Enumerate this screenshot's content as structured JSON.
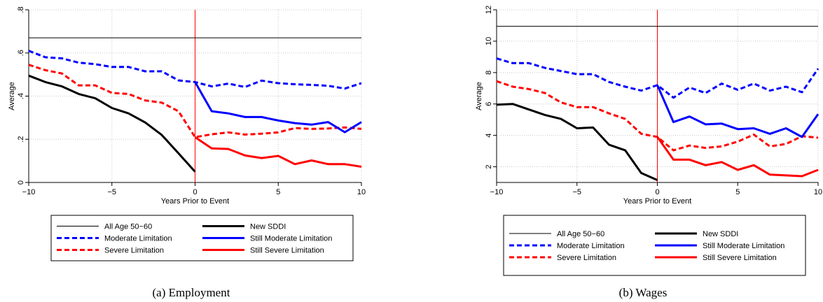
{
  "chart_data": [
    {
      "type": "line",
      "caption": "(a)  Employment",
      "xlabel": "Years Prior to Event",
      "ylabel": "Average",
      "xlim": [
        -10,
        10
      ],
      "ylim": [
        0,
        0.8
      ],
      "xticks": [
        -10,
        -5,
        0,
        5,
        10
      ],
      "xtick_labels": [
        "−10",
        "−5",
        "0",
        "5",
        "10"
      ],
      "yticks": [
        0,
        0.2,
        0.4,
        0.6,
        0.8
      ],
      "ytick_labels": [
        "0",
        ".2",
        ".4",
        ".6",
        ".8"
      ],
      "grid": true,
      "event_line_x": 0,
      "series": [
        {
          "name": "All Age 50−60",
          "color": "#000000",
          "style": "thin",
          "x": [
            -10,
            10
          ],
          "y": [
            0.67,
            0.67
          ]
        },
        {
          "name": "Moderate Limitation",
          "color": "#0000ff",
          "style": "dashed",
          "x": [
            -10,
            -9,
            -8,
            -7,
            -6,
            -5,
            -4,
            -3,
            -2,
            -1,
            0,
            1,
            2,
            3,
            4,
            5,
            6,
            7,
            8,
            9,
            10
          ],
          "y": [
            0.61,
            0.58,
            0.575,
            0.555,
            0.548,
            0.535,
            0.535,
            0.515,
            0.515,
            0.473,
            0.465,
            0.445,
            0.458,
            0.442,
            0.472,
            0.46,
            0.455,
            0.452,
            0.448,
            0.435,
            0.46
          ]
        },
        {
          "name": "Severe Limitation",
          "color": "#ff0000",
          "style": "dashed",
          "x": [
            -10,
            -9,
            -8,
            -7,
            -6,
            -5,
            -4,
            -3,
            -2,
            -1,
            0,
            1,
            2,
            3,
            4,
            5,
            6,
            7,
            8,
            9,
            10
          ],
          "y": [
            0.545,
            0.52,
            0.505,
            0.45,
            0.45,
            0.415,
            0.41,
            0.38,
            0.37,
            0.33,
            0.21,
            0.223,
            0.232,
            0.222,
            0.226,
            0.232,
            0.252,
            0.248,
            0.25,
            0.255,
            0.248
          ]
        },
        {
          "name": "New SDDI",
          "color": "#000000",
          "style": "thick",
          "x": [
            -10,
            -9,
            -8,
            -7,
            -6,
            -5,
            -4,
            -3,
            -2,
            -1,
            0
          ],
          "y": [
            0.495,
            0.465,
            0.445,
            0.41,
            0.39,
            0.345,
            0.32,
            0.278,
            0.22,
            0.135,
            0.05
          ]
        },
        {
          "name": "Still Moderate Limitation",
          "color": "#0000ff",
          "style": "solid",
          "x": [
            0,
            1,
            2,
            3,
            4,
            5,
            6,
            7,
            8,
            9,
            10
          ],
          "y": [
            0.465,
            0.33,
            0.32,
            0.303,
            0.303,
            0.287,
            0.275,
            0.268,
            0.28,
            0.233,
            0.28
          ]
        },
        {
          "name": "Still Severe Limitation",
          "color": "#ff0000",
          "style": "solid",
          "x": [
            0,
            1,
            2,
            3,
            4,
            5,
            6,
            7,
            8,
            9,
            10
          ],
          "y": [
            0.21,
            0.158,
            0.155,
            0.125,
            0.113,
            0.123,
            0.085,
            0.102,
            0.085,
            0.085,
            0.073
          ]
        }
      ]
    },
    {
      "type": "line",
      "caption": "(b)  Wages",
      "xlabel": "Years Prior to Event",
      "ylabel": "Average",
      "xlim": [
        -10,
        10
      ],
      "ylim": [
        1,
        12
      ],
      "xticks": [
        -10,
        -5,
        0,
        5,
        10
      ],
      "xtick_labels": [
        "−10",
        "−5",
        "0",
        "5",
        "10"
      ],
      "yticks": [
        2,
        4,
        6,
        8,
        10,
        12
      ],
      "ytick_labels": [
        "2",
        "4",
        "6",
        "8",
        "10",
        "12"
      ],
      "grid": true,
      "event_line_x": 0,
      "series": [
        {
          "name": "All Age 50−60",
          "color": "#000000",
          "style": "thin",
          "x": [
            -10,
            10
          ],
          "y": [
            10.95,
            10.95
          ]
        },
        {
          "name": "Moderate Limitation",
          "color": "#0000ff",
          "style": "dashed",
          "x": [
            -10,
            -9,
            -8,
            -7,
            -6,
            -5,
            -4,
            -3,
            -2,
            -1,
            0,
            1,
            2,
            3,
            4,
            5,
            6,
            7,
            8,
            9,
            10
          ],
          "y": [
            8.9,
            8.6,
            8.6,
            8.3,
            8.1,
            7.9,
            7.9,
            7.4,
            7.1,
            6.85,
            7.2,
            6.4,
            7.05,
            6.7,
            7.3,
            6.9,
            7.3,
            6.85,
            7.1,
            6.75,
            8.25
          ]
        },
        {
          "name": "Severe Limitation",
          "color": "#ff0000",
          "style": "dashed",
          "x": [
            -10,
            -9,
            -8,
            -7,
            -6,
            -5,
            -4,
            -3,
            -2,
            -1,
            0,
            1,
            2,
            3,
            4,
            5,
            6,
            7,
            8,
            9,
            10
          ],
          "y": [
            7.45,
            7.1,
            6.95,
            6.7,
            6.1,
            5.8,
            5.8,
            5.4,
            5.05,
            4.1,
            3.9,
            3.05,
            3.35,
            3.2,
            3.3,
            3.6,
            4.05,
            3.3,
            3.45,
            3.95,
            3.85
          ]
        },
        {
          "name": "New SDDI",
          "color": "#000000",
          "style": "thick",
          "x": [
            -10,
            -9,
            -8,
            -7,
            -6,
            -5,
            -4,
            -3,
            -2,
            -1,
            0
          ],
          "y": [
            5.95,
            6.0,
            5.65,
            5.3,
            5.05,
            4.45,
            4.5,
            3.4,
            3.05,
            1.6,
            1.15
          ]
        },
        {
          "name": "Still Moderate Limitation",
          "color": "#0000ff",
          "style": "solid",
          "x": [
            0,
            1,
            2,
            3,
            4,
            5,
            6,
            7,
            8,
            9,
            10
          ],
          "y": [
            7.2,
            4.85,
            5.2,
            4.7,
            4.75,
            4.4,
            4.45,
            4.1,
            4.45,
            3.9,
            5.35
          ]
        },
        {
          "name": "Still Severe Limitation",
          "color": "#ff0000",
          "style": "solid",
          "x": [
            0,
            1,
            2,
            3,
            4,
            5,
            6,
            7,
            8,
            9,
            10
          ],
          "y": [
            3.9,
            2.45,
            2.45,
            2.1,
            2.3,
            1.8,
            2.1,
            1.5,
            1.45,
            1.4,
            1.8
          ]
        }
      ]
    }
  ]
}
